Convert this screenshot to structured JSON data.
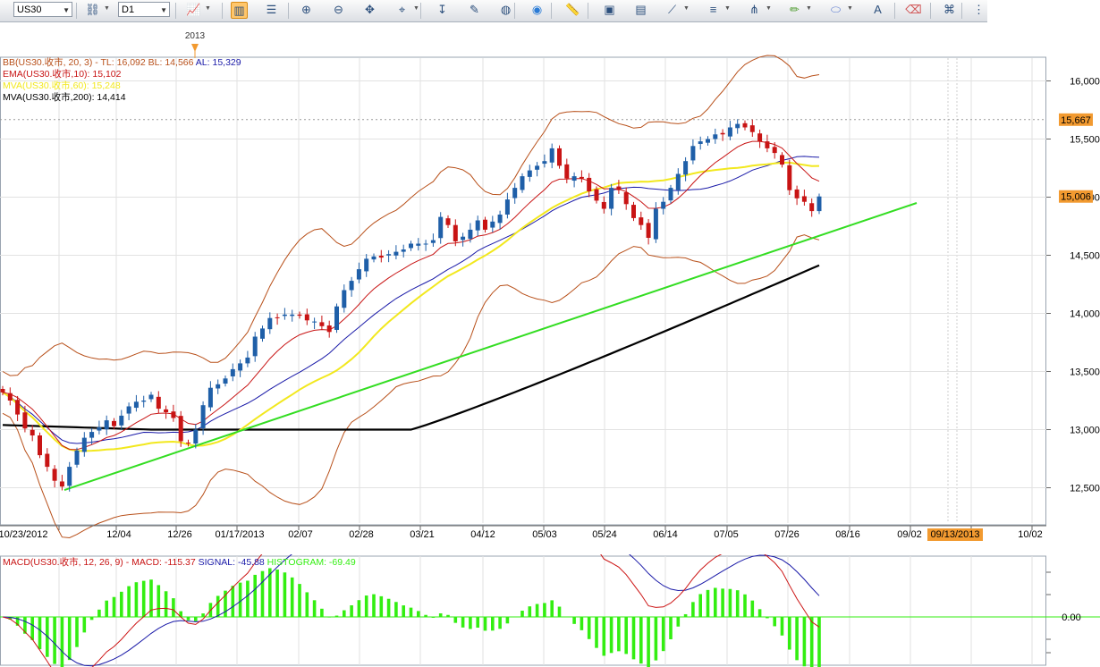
{
  "toolbar": {
    "symbol": "US30",
    "timeframe": "D1",
    "buttons": [
      {
        "name": "symbol-link-icon",
        "x": 94,
        "dropdown": true
      },
      {
        "name": "chart-type-icon",
        "x": 207,
        "dropdown": true
      },
      {
        "name": "candlestick-mode-icon",
        "x": 258,
        "active": true
      },
      {
        "name": "text-mode-icon",
        "x": 294
      },
      {
        "name": "zoom-in-icon",
        "x": 333
      },
      {
        "name": "zoom-out-icon",
        "x": 369
      },
      {
        "name": "pan-icon",
        "x": 404
      },
      {
        "name": "crosshair-icon",
        "x": 440,
        "dropdown": true
      },
      {
        "name": "arrow-tool-icon",
        "x": 485
      },
      {
        "name": "indicator-icon",
        "x": 521
      },
      {
        "name": "template-icon",
        "x": 556
      },
      {
        "name": "globe-icon",
        "x": 591
      },
      {
        "name": "ruler-icon",
        "x": 631
      },
      {
        "name": "picture-icon",
        "x": 672
      },
      {
        "name": "chart-window-icon",
        "x": 707
      },
      {
        "name": "line-studies-icon",
        "x": 742,
        "dropdown": true
      },
      {
        "name": "fibonacci-icon",
        "x": 788,
        "dropdown": true
      },
      {
        "name": "pitchfork-icon",
        "x": 834,
        "dropdown": true
      },
      {
        "name": "pencil-icon",
        "x": 879,
        "dropdown": true
      },
      {
        "name": "ellipse-icon",
        "x": 925,
        "dropdown": true
      },
      {
        "name": "text-label-icon",
        "x": 972
      },
      {
        "name": "eraser-icon",
        "x": 1012
      },
      {
        "name": "object-list-icon",
        "x": 1052
      },
      {
        "name": "more-options-icon",
        "x": 1085
      }
    ]
  },
  "colors": {
    "up": "#1f5fa8",
    "down": "#c81414",
    "bollinger": "#b8501a",
    "ema": "#c81414",
    "mva60": "#f2e81e",
    "mva200": "#000000",
    "trendline": "#33dd22",
    "macd": "#cc1414",
    "signal": "#1a1aa8",
    "histogram": "#33ee11",
    "price_label_bg": "#f29a30",
    "grid": "#e2e2e2"
  },
  "main_chart": {
    "legend": [
      {
        "prefix": "BB(US30.收市, 20, 3) -  TL: ",
        "tl": "16,092",
        "mid": "  BL: ",
        "bl": "14,566",
        "al_label": "  AL: ",
        "al": "15,329"
      },
      {
        "text": "EMA(US30.收市,10): 15,102"
      },
      {
        "text": "MVA(US30.收市,60): 15,248"
      },
      {
        "text": "MVA(US30.收市,200): 14,414"
      }
    ],
    "year_marker": "2013",
    "y_ticks": [
      "16,000",
      "15,500",
      "15,000",
      "14,500",
      "14,000",
      "13,500",
      "13,000",
      "12,500"
    ],
    "current_price": "15,006",
    "hline_price": "15,667",
    "x_ticks": [
      "10/23/2012",
      "12/04",
      "12/26",
      "01/17/2013",
      "02/07",
      "02/28",
      "03/21",
      "04/12",
      "05/03",
      "05/24",
      "06/14",
      "07/05",
      "07/26",
      "08/16",
      "09/02",
      "09/13/2013",
      "10/02"
    ],
    "x_highlight": "09/13/2013"
  },
  "chart_data": [
    {
      "type": "candlestick",
      "title": "US30 D1",
      "x_tick_labels": [
        "10/23/2012",
        "12/04",
        "12/26",
        "01/17/2013",
        "02/07",
        "02/28",
        "03/21",
        "04/12",
        "05/03",
        "05/24",
        "06/14",
        "07/05",
        "07/26",
        "08/16",
        "09/02",
        "09/13/2013",
        "10/02"
      ],
      "ylim": [
        12150,
        16150
      ],
      "close_series_approx": [
        13320,
        13250,
        13130,
        13010,
        12950,
        12780,
        12680,
        12560,
        12510,
        12680,
        12820,
        12930,
        12980,
        13020,
        13080,
        13030,
        13120,
        13200,
        13240,
        13250,
        13300,
        13180,
        13150,
        13100,
        12900,
        12880,
        13000,
        13210,
        13360,
        13390,
        13440,
        13520,
        13570,
        13620,
        13800,
        13870,
        13960,
        13960,
        13990,
        13990,
        13980,
        13940,
        13930,
        13890,
        13840,
        14060,
        14200,
        14280,
        14380,
        14470,
        14490,
        14480,
        14510,
        14530,
        14550,
        14600,
        14600,
        14600,
        14630,
        14830,
        14760,
        14620,
        14660,
        14720,
        14800,
        14720,
        14790,
        14850,
        14980,
        15080,
        15180,
        15230,
        15270,
        15310,
        15420,
        15270,
        15160,
        15180,
        15160,
        15050,
        14970,
        14900,
        15080,
        15060,
        14940,
        14820,
        14760,
        14650,
        14900,
        14960,
        15080,
        15200,
        15310,
        15440,
        15480,
        15500,
        15540,
        15540,
        15600,
        15630,
        15600,
        15560,
        15480,
        15420,
        15380,
        15280,
        15060,
        14990,
        14960,
        14880,
        15006
      ],
      "series": [
        {
          "name": "BB Upper (20,3)",
          "last": 16092
        },
        {
          "name": "BB Lower (20,3)",
          "last": 14566
        },
        {
          "name": "EMA(10)",
          "last": 15102
        },
        {
          "name": "MVA(60)",
          "last": 15248
        },
        {
          "name": "MVA(200)",
          "last": 14414
        }
      ],
      "trendline": {
        "from": [
          0,
          12480
        ],
        "to": [
          118,
          14950
        ]
      },
      "horizontal_line": 15667,
      "last_price": 15006
    },
    {
      "type": "macd",
      "params": [
        12,
        26,
        9
      ],
      "legend": {
        "prefix": "MACD(US30.收市, 12, 26, 9) -  MACD: ",
        "macd": "-115.37",
        "sig_label": "  SIGNAL: ",
        "signal": "-45.88",
        "hist_label": "  HISTOGRAM: ",
        "histogram": "-69.49"
      },
      "zero_label": "0.00"
    }
  ]
}
